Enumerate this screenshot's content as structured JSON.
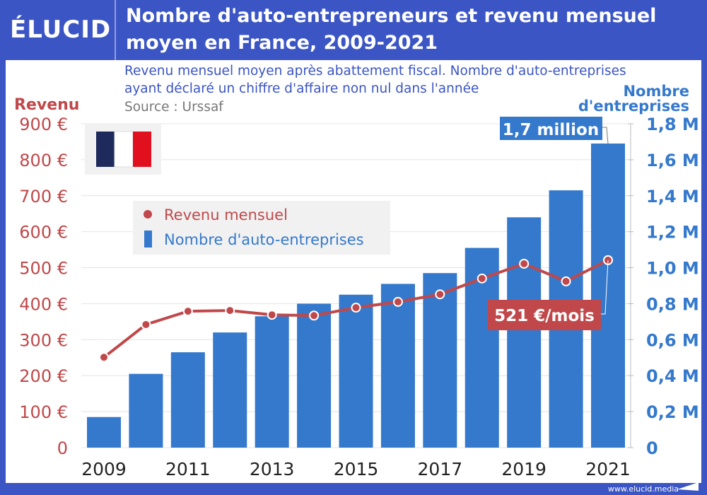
{
  "header": {
    "logo": "ÉLUCID",
    "title": "Nombre d'auto-entrepreneurs et revenu mensuel moyen en France, 2009-2021"
  },
  "subtitle_line1": "Revenu mensuel moyen après abattement fiscal. Nombre d'auto-entreprises",
  "subtitle_line2": "ayant déclaré un chiffre d'affaire non nul dans l'année",
  "source": "Source : Urssaf",
  "footer": "www.elucid.media",
  "colors": {
    "brand": "#3b55c4",
    "bars": "#3479cc",
    "line": "#c0484a",
    "flag_blue": "#1f2a5c",
    "flag_red": "#e0101e"
  },
  "chart_data": {
    "type": "bar+line",
    "categories": [
      "2009",
      "2010",
      "2011",
      "2012",
      "2013",
      "2014",
      "2015",
      "2016",
      "2017",
      "2018",
      "2019",
      "2020",
      "2021"
    ],
    "x_tick_labels": [
      "2009",
      "2011",
      "2013",
      "2015",
      "2017",
      "2019",
      "2021"
    ],
    "left_axis": {
      "label": "Revenu",
      "range": [
        0,
        900
      ],
      "ticks": [
        "0",
        "100 €",
        "200 €",
        "300 €",
        "400 €",
        "500 €",
        "600 €",
        "700 €",
        "800 €",
        "900 €"
      ]
    },
    "right_axis": {
      "label_line1": "Nombre",
      "label_line2": "d'entreprises",
      "range": [
        0,
        1.8
      ],
      "ticks": [
        "0",
        "0,2 M",
        "0,4 M",
        "0,6 M",
        "0,8 M",
        "1,0 M",
        "1,2 M",
        "1,4 M",
        "1,6 M",
        "1,8 M"
      ]
    },
    "grid": true,
    "legend": {
      "position": "upper-left",
      "items": [
        "Revenu mensuel",
        "Nombre d'auto-entreprises"
      ]
    },
    "series": [
      {
        "name": "Nombre d'auto-entreprises",
        "type": "bar",
        "axis": "right",
        "values": [
          0.17,
          0.41,
          0.53,
          0.64,
          0.73,
          0.8,
          0.85,
          0.91,
          0.97,
          1.11,
          1.28,
          1.43,
          1.69
        ]
      },
      {
        "name": "Revenu mensuel",
        "type": "line",
        "axis": "left",
        "values": [
          251,
          342,
          379,
          381,
          369,
          367,
          389,
          405,
          426,
          470,
          511,
          462,
          521
        ]
      }
    ],
    "annotations": [
      "1,7 million",
      "521 €/mois"
    ]
  }
}
